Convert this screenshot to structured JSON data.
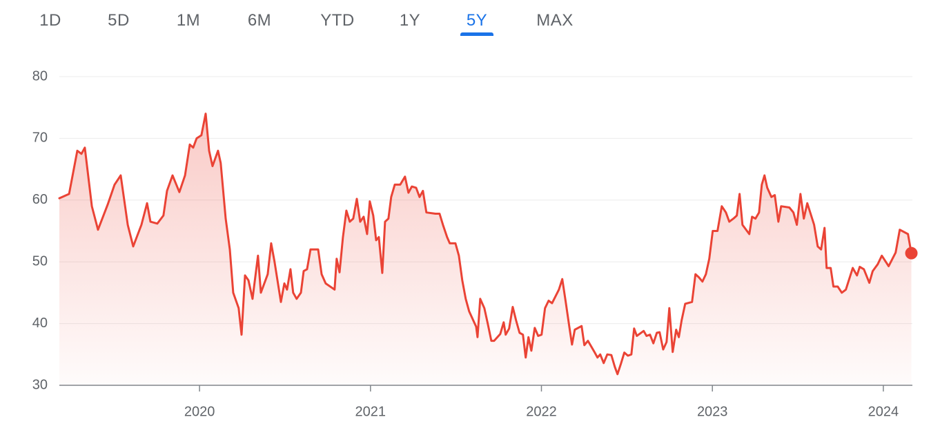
{
  "tabs": [
    "1D",
    "5D",
    "1M",
    "6M",
    "YTD",
    "1Y",
    "5Y",
    "MAX"
  ],
  "selected": 6,
  "chart_data": {
    "type": "line",
    "color": "#ea4335",
    "xlim": [
      2019.18,
      2024.17
    ],
    "xticks": [
      2020,
      2021,
      2022,
      2023,
      2024
    ],
    "ylim": [
      30,
      80
    ],
    "yticks": [
      30,
      40,
      50,
      60,
      70,
      80
    ],
    "grid": true,
    "x": [
      2019.18,
      2019.237,
      2019.285,
      2019.309,
      2019.329,
      2019.37,
      2019.406,
      2019.463,
      2019.503,
      2019.539,
      2019.58,
      2019.612,
      2019.66,
      2019.693,
      2019.713,
      2019.753,
      2019.789,
      2019.81,
      2019.842,
      2019.882,
      2019.915,
      2019.943,
      2019.963,
      2019.983,
      2020.011,
      2020.036,
      2020.056,
      2020.076,
      2020.108,
      2020.124,
      2020.153,
      2020.177,
      2020.197,
      2020.229,
      2020.246,
      2020.266,
      2020.286,
      2020.31,
      2020.342,
      2020.359,
      2020.399,
      2020.419,
      2020.439,
      2020.476,
      2020.496,
      2020.512,
      2020.532,
      2020.548,
      2020.568,
      2020.593,
      2020.609,
      2020.629,
      2020.649,
      2020.694,
      2020.714,
      2020.738,
      2020.79,
      2020.802,
      2020.819,
      2020.839,
      2020.859,
      2020.879,
      2020.899,
      2020.92,
      2020.94,
      2020.96,
      2020.98,
      2020.996,
      2021.016,
      2021.033,
      2021.049,
      2021.069,
      2021.085,
      2021.105,
      2021.121,
      2021.142,
      2021.174,
      2021.202,
      2021.222,
      2021.242,
      2021.267,
      2021.287,
      2021.307,
      2021.327,
      2021.38,
      2021.404,
      2021.424,
      2021.448,
      2021.464,
      2021.497,
      2021.517,
      2021.537,
      2021.557,
      2021.577,
      2021.618,
      2021.626,
      2021.642,
      2021.666,
      2021.686,
      2021.707,
      2021.723,
      2021.759,
      2021.779,
      2021.791,
      2021.811,
      2021.832,
      2021.852,
      2021.872,
      2021.892,
      2021.908,
      2021.924,
      2021.941,
      2021.961,
      2021.981,
      2022.001,
      2022.021,
      2022.042,
      2022.062,
      2022.102,
      2022.122,
      2022.142,
      2022.163,
      2022.179,
      2022.195,
      2022.235,
      2022.251,
      2022.272,
      2022.312,
      2022.328,
      2022.344,
      2022.364,
      2022.385,
      2022.409,
      2022.429,
      2022.445,
      2022.465,
      2022.485,
      2022.506,
      2022.526,
      2022.542,
      2022.558,
      2022.598,
      2022.615,
      2022.635,
      2022.655,
      2022.675,
      2022.691,
      2022.712,
      2022.732,
      2022.748,
      2022.768,
      2022.788,
      2022.804,
      2022.82,
      2022.841,
      2022.881,
      2022.901,
      2022.921,
      2022.942,
      2022.962,
      2022.982,
      2023.002,
      2023.03,
      2023.055,
      2023.079,
      2023.099,
      2023.123,
      2023.143,
      2023.159,
      2023.176,
      2023.216,
      2023.232,
      2023.252,
      2023.273,
      2023.289,
      2023.305,
      2023.321,
      2023.345,
      2023.365,
      2023.386,
      2023.402,
      2023.45,
      2023.474,
      2023.494,
      2023.515,
      2023.535,
      2023.555,
      2023.595,
      2023.616,
      2023.636,
      2023.656,
      2023.668,
      2023.692,
      2023.708,
      2023.733,
      2023.757,
      2023.781,
      2023.821,
      2023.846,
      2023.862,
      2023.886,
      2023.918,
      2023.938,
      2023.967,
      2023.991,
      2024.031,
      2024.072,
      2024.096,
      2024.144,
      2024.164
    ],
    "values": [
      60.3,
      61,
      68,
      67.5,
      68.5,
      59,
      55.2,
      59.3,
      62.5,
      64,
      56,
      52.5,
      56,
      59.5,
      56.5,
      56.2,
      57.5,
      61.5,
      64,
      61.3,
      64,
      69,
      68.5,
      70,
      70.5,
      74,
      68,
      65.5,
      68,
      66,
      57,
      52,
      45,
      42.5,
      38.2,
      47.8,
      47,
      44,
      51,
      45,
      48,
      53,
      50,
      43.5,
      46.5,
      45.5,
      48.8,
      45,
      44,
      45,
      48.5,
      48.8,
      52,
      52,
      48,
      46.5,
      45.5,
      50.5,
      48.3,
      54,
      58.3,
      56.5,
      57,
      60.2,
      56.5,
      57.3,
      54.5,
      59.8,
      57.5,
      53.5,
      54,
      48.2,
      56.5,
      57,
      60.5,
      62.5,
      62.5,
      63.8,
      61.2,
      62.2,
      62,
      60.5,
      61.5,
      58,
      57.8,
      57.8,
      56,
      54,
      53,
      53,
      51,
      47,
      44,
      42,
      39.5,
      37.8,
      44,
      42.5,
      40,
      37.2,
      37.2,
      38.3,
      40.2,
      38.2,
      39.2,
      42.7,
      40.5,
      38.5,
      38.2,
      34.5,
      37.8,
      35.6,
      39.3,
      38,
      38.2,
      42.5,
      43.7,
      43.3,
      45.5,
      47.2,
      43.5,
      39.5,
      36.6,
      39,
      39.6,
      36.5,
      37.2,
      35.3,
      34.5,
      35,
      33.6,
      35,
      34.9,
      33,
      31.8,
      33.5,
      35.3,
      34.8,
      35,
      39.2,
      38,
      38.8,
      38,
      38.2,
      36.8,
      38.5,
      38.6,
      35.8,
      37,
      42.5,
      35.4,
      39,
      37.8,
      40.5,
      43.2,
      43.5,
      48,
      47.5,
      46.8,
      48,
      50.5,
      55,
      55,
      59,
      58,
      56.5,
      57,
      57.5,
      61,
      56,
      54.5,
      57.3,
      57,
      58,
      62.5,
      64,
      62,
      60.5,
      60.8,
      56.5,
      59,
      58.8,
      58,
      56,
      61,
      57,
      59.5,
      56,
      52.5,
      52,
      55.5,
      49,
      49,
      46,
      46,
      45,
      45.5,
      49,
      47.8,
      49.2,
      48.8,
      46.6,
      48.5,
      49.6,
      51,
      49.3,
      51.5,
      55.2,
      54.5,
      51.4
    ]
  }
}
